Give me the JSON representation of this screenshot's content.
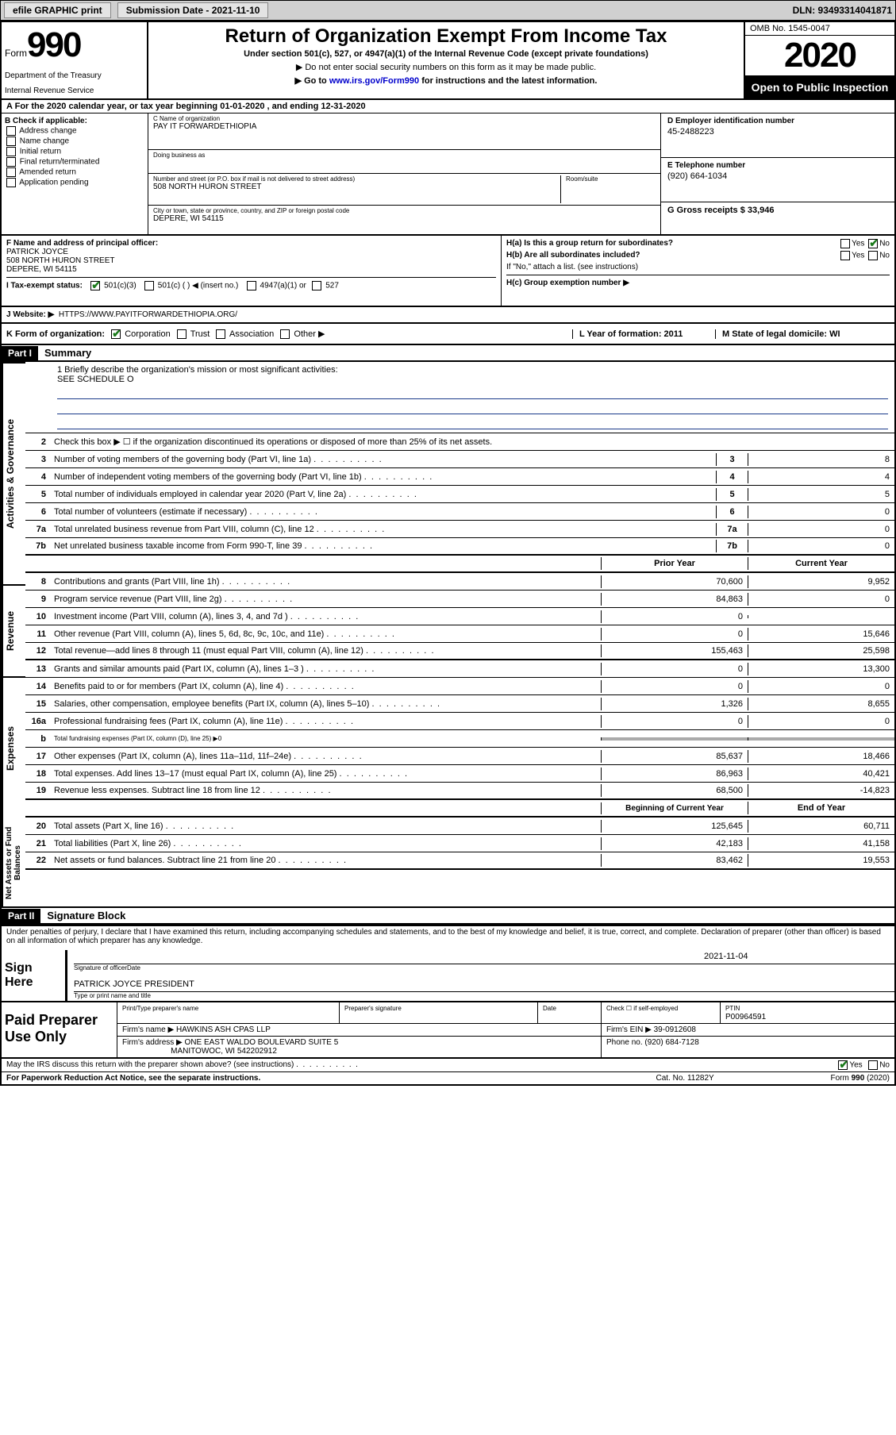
{
  "toolbar": {
    "efile": "efile GRAPHIC print",
    "submission_label": "Submission Date - 2021-11-10",
    "dln": "DLN: 93493314041871"
  },
  "header": {
    "form_word": "Form",
    "form_number": "990",
    "dept1": "Department of the Treasury",
    "dept2": "Internal Revenue Service",
    "title": "Return of Organization Exempt From Income Tax",
    "subtitle": "Under section 501(c), 527, or 4947(a)(1) of the Internal Revenue Code (except private foundations)",
    "note1": "▶ Do not enter social security numbers on this form as it may be made public.",
    "note2_prefix": "▶ Go to ",
    "note2_link": "www.irs.gov/Form990",
    "note2_suffix": " for instructions and the latest information.",
    "omb": "OMB No. 1545-0047",
    "year": "2020",
    "open_public": "Open to Public Inspection"
  },
  "tax_year_line": "For the 2020 calendar year, or tax year beginning 01-01-2020   , and ending 12-31-2020",
  "checkboxes": {
    "header": "B Check if applicable:",
    "items": [
      "Address change",
      "Name change",
      "Initial return",
      "Final return/terminated",
      "Amended return",
      "Application pending"
    ]
  },
  "entity": {
    "c_label": "C Name of organization",
    "c_value": "PAY IT FORWARDETHIOPIA",
    "dba_label": "Doing business as",
    "dba_value": "",
    "street_label": "Number and street (or P.O. box if mail is not delivered to street address)",
    "room_label": "Room/suite",
    "street_value": "508 NORTH HURON STREET",
    "city_label": "City or town, state or province, country, and ZIP or foreign postal code",
    "city_value": "DEPERE, WI  54115",
    "d_label": "D Employer identification number",
    "d_value": "45-2488223",
    "e_label": "E Telephone number",
    "e_value": "(920) 664-1034",
    "g_label": "G Gross receipts $ 33,946"
  },
  "officer": {
    "f_label": "F  Name and address of principal officer:",
    "name": "PATRICK JOYCE",
    "street": "508 NORTH HURON STREET",
    "city": "DEPERE, WI  54115"
  },
  "group": {
    "ha_label": "H(a)  Is this a group return for subordinates?",
    "hb_label": "H(b)  Are all subordinates included?",
    "hb_note": "If \"No,\" attach a list. (see instructions)",
    "hc_label": "H(c)  Group exemption number ▶"
  },
  "status": {
    "i_label": "I  Tax-exempt status:",
    "opt1": "501(c)(3)",
    "opt2": "501(c) (   ) ◀ (insert no.)",
    "opt3": "4947(a)(1) or",
    "opt4": "527"
  },
  "website": {
    "label": "J  Website: ▶",
    "value": "HTTPS://WWW.PAYITFORWARDETHIOPIA.ORG/"
  },
  "orgform": {
    "k_label": "K Form of organization:",
    "opts": [
      "Corporation",
      "Trust",
      "Association",
      "Other ▶"
    ],
    "l_label": "L Year of formation: 2011",
    "m_label": "M State of legal domicile: WI"
  },
  "part1": {
    "badge": "Part I",
    "title": "Summary",
    "line1_label": "1  Briefly describe the organization's mission or most significant activities:",
    "line1_value": "SEE SCHEDULE O",
    "line2": "Check this box ▶ ☐  if the organization discontinued its operations or disposed of more than 25% of its net assets.",
    "rows_gov": [
      {
        "n": "3",
        "text": "Number of voting members of the governing body (Part VI, line 1a)",
        "box": "3",
        "val": "8"
      },
      {
        "n": "4",
        "text": "Number of independent voting members of the governing body (Part VI, line 1b)",
        "box": "4",
        "val": "4"
      },
      {
        "n": "5",
        "text": "Total number of individuals employed in calendar year 2020 (Part V, line 2a)",
        "box": "5",
        "val": "5"
      },
      {
        "n": "6",
        "text": "Total number of volunteers (estimate if necessary)",
        "box": "6",
        "val": "0"
      },
      {
        "n": "7a",
        "text": "Total unrelated business revenue from Part VIII, column (C), line 12",
        "box": "7a",
        "val": "0"
      },
      {
        "n": "7b",
        "text": "Net unrelated business taxable income from Form 990-T, line 39",
        "box": "7b",
        "val": "0"
      }
    ],
    "year_headers": {
      "prior": "Prior Year",
      "current": "Current Year"
    },
    "rows_rev": [
      {
        "n": "8",
        "text": "Contributions and grants (Part VIII, line 1h)",
        "prior": "70,600",
        "curr": "9,952"
      },
      {
        "n": "9",
        "text": "Program service revenue (Part VIII, line 2g)",
        "prior": "84,863",
        "curr": "0"
      },
      {
        "n": "10",
        "text": "Investment income (Part VIII, column (A), lines 3, 4, and 7d )",
        "prior": "0",
        "curr": ""
      },
      {
        "n": "11",
        "text": "Other revenue (Part VIII, column (A), lines 5, 6d, 8c, 9c, 10c, and 11e)",
        "prior": "0",
        "curr": "15,646"
      },
      {
        "n": "12",
        "text": "Total revenue—add lines 8 through 11 (must equal Part VIII, column (A), line 12)",
        "prior": "155,463",
        "curr": "25,598"
      }
    ],
    "rows_exp": [
      {
        "n": "13",
        "text": "Grants and similar amounts paid (Part IX, column (A), lines 1–3 )",
        "prior": "0",
        "curr": "13,300"
      },
      {
        "n": "14",
        "text": "Benefits paid to or for members (Part IX, column (A), line 4)",
        "prior": "0",
        "curr": "0"
      },
      {
        "n": "15",
        "text": "Salaries, other compensation, employee benefits (Part IX, column (A), lines 5–10)",
        "prior": "1,326",
        "curr": "8,655"
      },
      {
        "n": "16a",
        "text": "Professional fundraising fees (Part IX, column (A), line 11e)",
        "prior": "0",
        "curr": "0"
      },
      {
        "n": "b",
        "text": "Total fundraising expenses (Part IX, column (D), line 25) ▶0",
        "prior": "SHADED",
        "curr": "SHADED",
        "small": true
      },
      {
        "n": "17",
        "text": "Other expenses (Part IX, column (A), lines 11a–11d, 11f–24e)",
        "prior": "85,637",
        "curr": "18,466"
      },
      {
        "n": "18",
        "text": "Total expenses. Add lines 13–17 (must equal Part IX, column (A), line 25)",
        "prior": "86,963",
        "curr": "40,421"
      },
      {
        "n": "19",
        "text": "Revenue less expenses. Subtract line 18 from line 12",
        "prior": "68,500",
        "curr": "-14,823"
      }
    ],
    "balance_headers": {
      "begin": "Beginning of Current Year",
      "end": "End of Year"
    },
    "rows_bal": [
      {
        "n": "20",
        "text": "Total assets (Part X, line 16)",
        "prior": "125,645",
        "curr": "60,711"
      },
      {
        "n": "21",
        "text": "Total liabilities (Part X, line 26)",
        "prior": "42,183",
        "curr": "41,158"
      },
      {
        "n": "22",
        "text": "Net assets or fund balances. Subtract line 21 from line 20",
        "prior": "83,462",
        "curr": "19,553"
      }
    ],
    "side_labels": {
      "gov": "Activities & Governance",
      "rev": "Revenue",
      "exp": "Expenses",
      "bal": "Net Assets or Fund Balances"
    }
  },
  "part2": {
    "badge": "Part II",
    "title": "Signature Block",
    "penalty": "Under penalties of perjury, I declare that I have examined this return, including accompanying schedules and statements, and to the best of my knowledge and belief, it is true, correct, and complete. Declaration of preparer (other than officer) is based on all information of which preparer has any knowledge."
  },
  "sign": {
    "label": "Sign Here",
    "sig_caption": "Signature of officer",
    "date_value": "2021-11-04",
    "date_caption": "Date",
    "name": "PATRICK JOYCE  PRESIDENT",
    "name_caption": "Type or print name and title"
  },
  "preparer": {
    "label": "Paid Preparer Use Only",
    "h1": "Print/Type preparer's name",
    "h2": "Preparer's signature",
    "h3": "Date",
    "h4": "Check ☐ if self-employed",
    "h5_label": "PTIN",
    "h5_value": "P00964591",
    "firm_label": "Firm's name    ▶",
    "firm_value": "HAWKINS ASH CPAS LLP",
    "ein_label": "Firm's EIN ▶",
    "ein_value": "39-0912608",
    "addr_label": "Firm's address ▶",
    "addr_value1": "ONE EAST WALDO BOULEVARD SUITE 5",
    "addr_value2": "MANITOWOC, WI  542202912",
    "phone_label": "Phone no.",
    "phone_value": "(920) 684-7128"
  },
  "footer": {
    "discuss": "May the IRS discuss this return with the preparer shown above? (see instructions)",
    "paperwork": "For Paperwork Reduction Act Notice, see the separate instructions.",
    "catno": "Cat. No. 11282Y",
    "formno": "Form 990 (2020)"
  }
}
